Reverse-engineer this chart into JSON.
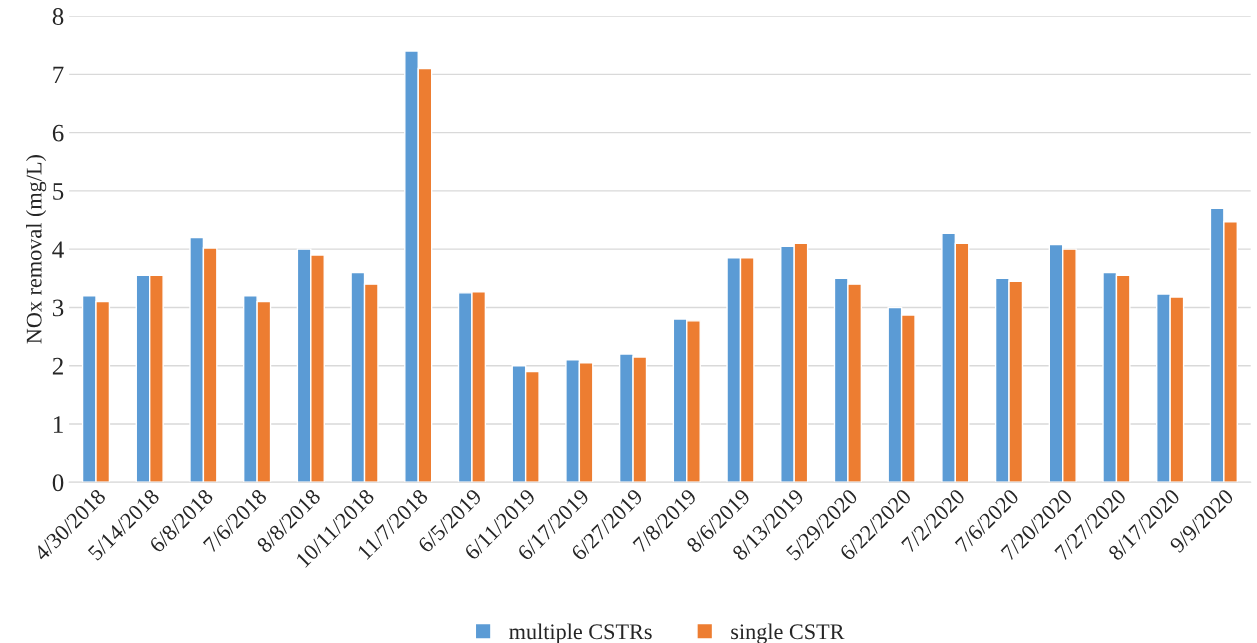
{
  "chart_data": {
    "type": "bar",
    "ylabel": "NOx removal (mg/L)",
    "categories": [
      "4/30/2018",
      "5/14/2018",
      "6/8/2018",
      "7/6/2018",
      "8/8/2018",
      "10/11/2018",
      "11/7/2018",
      "6/5/2019",
      "6/11/2019",
      "6/17/2019",
      "6/27/2019",
      "7/8/2019",
      "8/6/2019",
      "8/13/2019",
      "5/29/2020",
      "6/22/2020",
      "7/2/2020",
      "7/6/2020",
      "7/20/2020",
      "7/27/2020",
      "8/17/2020",
      "9/9/2020"
    ],
    "series": [
      {
        "name": "multiple CSTRs",
        "color": "#5b9bd5",
        "values": [
          3.2,
          3.55,
          4.2,
          3.2,
          4.0,
          3.6,
          7.4,
          3.25,
          2.0,
          2.1,
          2.2,
          2.8,
          3.85,
          4.05,
          3.5,
          3.0,
          4.27,
          3.5,
          4.08,
          3.6,
          3.23,
          4.7
        ]
      },
      {
        "name": "single CSTR",
        "color": "#ed7d31",
        "values": [
          3.1,
          3.55,
          4.02,
          3.1,
          3.9,
          3.4,
          7.1,
          3.27,
          1.9,
          2.05,
          2.15,
          2.77,
          3.85,
          4.1,
          3.4,
          2.87,
          4.1,
          3.45,
          4.0,
          3.55,
          3.18,
          4.47
        ]
      }
    ],
    "ylim": [
      0,
      8
    ],
    "yticks": [
      0,
      1,
      2,
      3,
      4,
      5,
      6,
      7,
      8
    ],
    "grid": "y",
    "legend": "bottom"
  }
}
